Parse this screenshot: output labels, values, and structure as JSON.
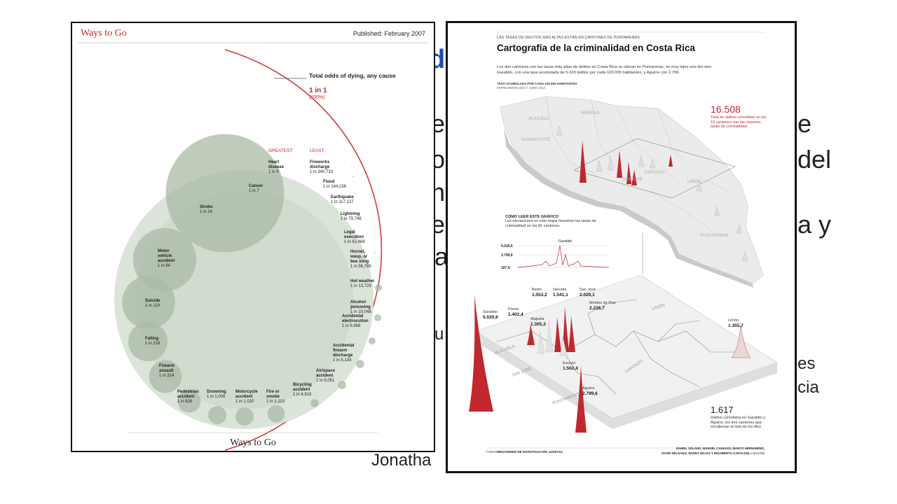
{
  "slide": {
    "bg_fragments": [
      "d",
      "e",
      "e",
      "o",
      "del",
      "n",
      "a y",
      "e",
      "a",
      "u",
      "es",
      "cia",
      "Jonatha"
    ],
    "accent": "#1f4fa8"
  },
  "left": {
    "title": "Ways to Go",
    "published": "Published: February 2007",
    "footer": "Ways to Go",
    "total": {
      "label": "Total odds of dying, any cause",
      "odds": "1 in 1",
      "pct": "(100%)"
    },
    "greatest": "GREATEST",
    "least": "LEAST",
    "accent": "#c8242b",
    "circle_color": "#a9bba6",
    "bg_color": "#dbe4d9",
    "causes": [
      {
        "name": "Heart disease",
        "odds": "1 in 5",
        "value": 5
      },
      {
        "name": "Cancer",
        "odds": "1 in 7",
        "value": 7
      },
      {
        "name": "Stroke",
        "odds": "1 in 24",
        "value": 24
      },
      {
        "name": "Motor vehicle accident",
        "odds": "1 in 84",
        "value": 84
      },
      {
        "name": "Suicide",
        "odds": "1 in 119",
        "value": 119
      },
      {
        "name": "Falling",
        "odds": "1 in 218",
        "value": 218
      },
      {
        "name": "Firearm assault",
        "odds": "1 in 314",
        "value": 314
      },
      {
        "name": "Pedestrian accident",
        "odds": "1 in 626",
        "value": 626
      },
      {
        "name": "Drowning",
        "odds": "1 in 1,008",
        "value": 1008
      },
      {
        "name": "Motorcycle accident",
        "odds": "1 in 1,020",
        "value": 1020
      },
      {
        "name": "Fire or smoke",
        "odds": "1 in 1,113",
        "value": 1113
      },
      {
        "name": "Bicycling accident",
        "odds": "1 in 4,919",
        "value": 4919
      },
      {
        "name": "Air/space accident",
        "odds": "1 in 5,051",
        "value": 5051
      },
      {
        "name": "Accidental firearm discharge",
        "odds": "1 in 5,134",
        "value": 5134
      },
      {
        "name": "Accidental electrocution",
        "odds": "1 in 9,968",
        "value": 9968
      },
      {
        "name": "Alcohol poisoning",
        "odds": "1 in 10,048",
        "value": 10048
      },
      {
        "name": "Hot weather",
        "odds": "1 in 13,729",
        "value": 13729
      },
      {
        "name": "Hornet, wasp, or bee sting",
        "odds": "1 in 56,789",
        "value": 56789
      },
      {
        "name": "Legal execution",
        "odds": "1 in 62,468",
        "value": 62468
      },
      {
        "name": "Lightning",
        "odds": "1 in 79,746",
        "value": 79746
      },
      {
        "name": "Earthquake",
        "odds": "1 in 117,127",
        "value": 117127
      },
      {
        "name": "Flood",
        "odds": "1 in 144,156",
        "value": 144156
      },
      {
        "name": "Fireworks discharge",
        "odds": "1 in 340,733",
        "value": 340733
      }
    ]
  },
  "right": {
    "kicker": "LAS TASAS DE DELITOS MÁS ALTAS ESTÁN EN CANTONES DE PUNTARENAS",
    "title": "Cartografía de la criminalidad en Costa Rica",
    "intro": [
      "Los dos cantones con las tasas más altas de delitos en Costa Rica se ubican en Puntarenas, no muy lejos uno del otro:",
      "Garabito, con una tasa acumulada de 5.020 delitos por cada 100.000 habitantes, y Aguirre con 2.799."
    ],
    "subhead": "TASA ACUMULADA POR CADA 100.000 HABITANTES",
    "subhead2": "ENTRE ENERO 2010 Y JUNIO 2013",
    "big_stat": "16.508",
    "big_stat_text": "Total de delitos cometidos en los 10 cantones con las mayores tasas de criminalidad.",
    "how_title": "CÓMO LEER ESTE GRÁFICO",
    "how_text": "Las elevaciones en este mapa muestran las tasas de criminalidad en los 81 cantones.",
    "scale": [
      "5.020,6",
      "2.799,6",
      "107,9"
    ],
    "scale_label": "Garabito",
    "stat2": "1.617",
    "stat2_text": "Delitos cometidos en Garabito y Aguirre, los dos cantones que encabezan la lista de los diez.",
    "source_label": "FUENTE:",
    "source": "ORGANISMO DE INVESTIGACIÓN JUDICIAL",
    "credits": [
      "DANIEL SOLANO, MANUEL CANALES, MARCO HERNÁNDEZ,",
      "DAVID DELGADO, RONNY ROJAS Y RIGOBERTO CARVAJAL",
      "/ LA NACIÓN"
    ],
    "regions_top": [
      "ALAJUELA",
      "HEREDIA",
      "GUANACASTE",
      "SAN JOSÉ",
      "CARTAGO",
      "LIMÓN",
      "PUNTARENAS"
    ],
    "regions_bottom": [
      "ALAJUELA",
      "SAN JOSÉ",
      "PUNTARENAS",
      "CARTAGO",
      "LIMÓN"
    ],
    "cantons": [
      {
        "name": "Belén",
        "value": "1.553,2"
      },
      {
        "name": "Heredia",
        "value": "1.541,1"
      },
      {
        "name": "San José",
        "value": "2.020,1"
      },
      {
        "name": "Montes de Oca",
        "value": "2.226,7"
      },
      {
        "name": "Flores",
        "value": "1.402,4"
      },
      {
        "name": "Garabito",
        "value": "5.020,6"
      },
      {
        "name": "Alajuela",
        "value": "1.305,3"
      },
      {
        "name": "Escazú",
        "value": "1.502,4"
      },
      {
        "name": "Aguirre",
        "value": "2.799,6"
      },
      {
        "name": "Limón",
        "value": "1.355,7"
      }
    ],
    "accent": "#c0282e"
  }
}
